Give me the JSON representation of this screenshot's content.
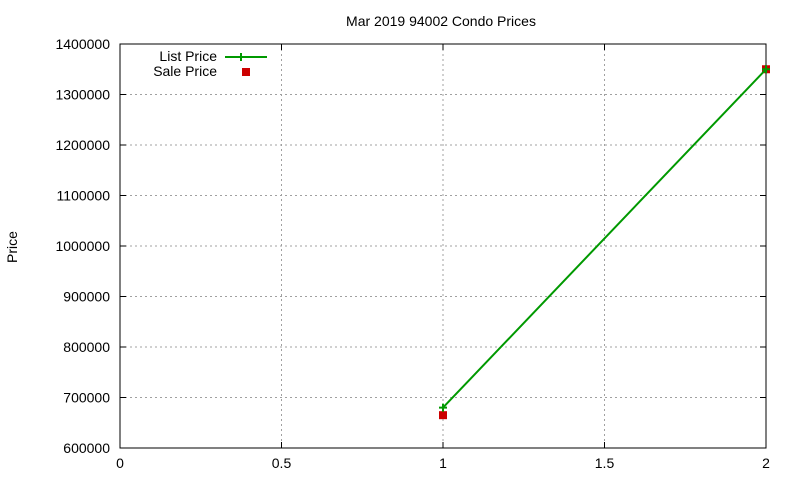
{
  "chart_data": {
    "type": "line",
    "title": "Mar 2019 94002 Condo Prices",
    "xlabel": "",
    "ylabel": "Price",
    "xlim": [
      0,
      2
    ],
    "ylim": [
      600000,
      1400000
    ],
    "x_ticks": [
      "0",
      "0.5",
      "1",
      "1.5",
      "2"
    ],
    "y_ticks": [
      "600000",
      "700000",
      "800000",
      "900000",
      "1000000",
      "1100000",
      "1200000",
      "1300000",
      "1400000"
    ],
    "grid": true,
    "legend_position": "top-left",
    "series": [
      {
        "name": "List Price",
        "style": "line+cross",
        "color": "#009900",
        "x": [
          1,
          2
        ],
        "values": [
          680000,
          1350000
        ]
      },
      {
        "name": "Sale Price",
        "style": "square-marker",
        "color": "#cc0000",
        "x": [
          1,
          2
        ],
        "values": [
          665000,
          1350000
        ]
      }
    ]
  }
}
